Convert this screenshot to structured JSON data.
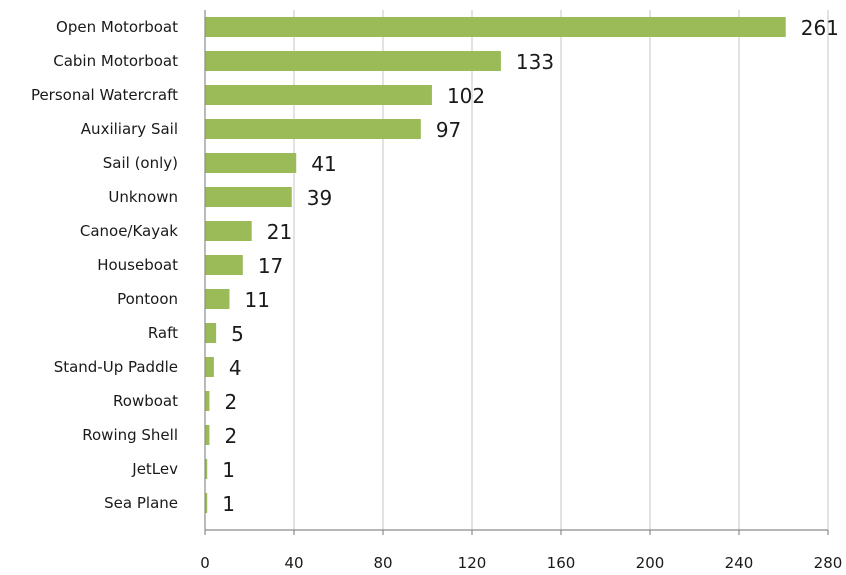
{
  "chart_data": {
    "type": "bar",
    "orientation": "horizontal",
    "title": "",
    "xlabel": "",
    "ylabel": "",
    "categories": [
      "Open Motorboat",
      "Cabin Motorboat",
      "Personal Watercraft",
      "Auxiliary Sail",
      "Sail (only)",
      "Unknown",
      "Canoe/Kayak",
      "Houseboat",
      "Pontoon",
      "Raft",
      "Stand-Up Paddle",
      "Rowboat",
      "Rowing Shell",
      "JetLev",
      "Sea Plane"
    ],
    "values": [
      261,
      133,
      102,
      97,
      41,
      39,
      21,
      17,
      11,
      5,
      4,
      2,
      2,
      1,
      1
    ],
    "xlim": [
      0,
      280
    ],
    "xticks": [
      0,
      40,
      80,
      120,
      160,
      200,
      240,
      280
    ],
    "grid": "vertical",
    "legend": "none",
    "bar_color": "#9bbb59"
  }
}
